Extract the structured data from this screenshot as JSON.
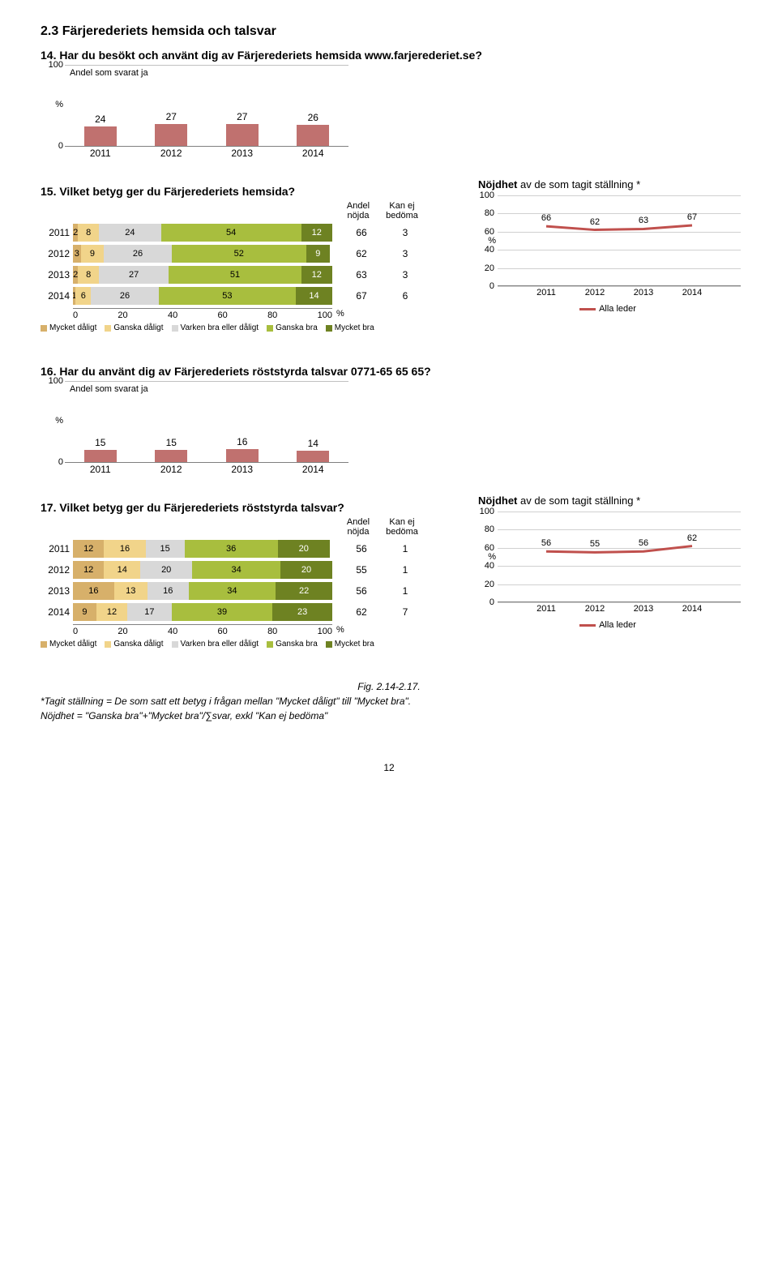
{
  "colors": {
    "bar_red": "#c0716f",
    "seg_mycket_dalig": "#d7b06a",
    "seg_ganska_dalig": "#f1d48a",
    "seg_varken": "#d8d8d8",
    "seg_ganska_bra": "#a8be3e",
    "seg_mycket_bra": "#6e8222",
    "line_red": "#c0504d",
    "grid": "#d0d0d0",
    "axis": "#808080"
  },
  "section_title": "2.3 Färjerederiets hemsida och talsvar",
  "q14": {
    "title": "14. Har du besökt och använt dig av Färjerederiets hemsida www.farjerederiet.se?",
    "legend": "Andel som svarat ja",
    "y": {
      "max": 100,
      "ticks": [
        0,
        100
      ]
    },
    "pct_label": "%",
    "bars": [
      {
        "x": "2011",
        "v": 24
      },
      {
        "x": "2012",
        "v": 27
      },
      {
        "x": "2013",
        "v": 27
      },
      {
        "x": "2014",
        "v": 26
      }
    ]
  },
  "q15": {
    "title": "15. Vilket betyg ger du Färjerederiets hemsida?",
    "header_andel": "Andel\nnöjda",
    "header_kan": "Kan ej\nbedöma",
    "rows": [
      {
        "year": "2011",
        "segs": [
          2,
          8,
          24,
          54,
          12
        ],
        "andel": 66,
        "kan": 3
      },
      {
        "year": "2012",
        "segs": [
          3,
          9,
          26,
          52,
          9
        ],
        "andel": 62,
        "kan": 3
      },
      {
        "year": "2013",
        "segs": [
          2,
          8,
          27,
          51,
          12
        ],
        "andel": 63,
        "kan": 3
      },
      {
        "year": "2014",
        "segs": [
          1,
          6,
          26,
          53,
          14
        ],
        "andel": 67,
        "kan": 6
      }
    ],
    "x_ticks": [
      0,
      20,
      40,
      60,
      80,
      100
    ],
    "pct_label": "%",
    "legend": [
      "Mycket dåligt",
      "Ganska dåligt",
      "Varken bra eller dåligt",
      "Ganska bra",
      "Mycket bra"
    ]
  },
  "nöjd15": {
    "title_prefix": "Nöjdhet",
    "title_suffix": " av de som tagit ställning *",
    "y_ticks": [
      0,
      20,
      40,
      60,
      80,
      100
    ],
    "pct_label": "%",
    "points": [
      {
        "x": "2011",
        "v": 66
      },
      {
        "x": "2012",
        "v": 62
      },
      {
        "x": "2013",
        "v": 63
      },
      {
        "x": "2014",
        "v": 67
      }
    ],
    "legend": "Alla leder"
  },
  "q16": {
    "title": "16. Har du använt dig av Färjerederiets röststyrda talsvar 0771-65 65 65?",
    "legend": "Andel som svarat ja",
    "y": {
      "max": 100,
      "ticks": [
        0,
        100
      ]
    },
    "pct_label": "%",
    "bars": [
      {
        "x": "2011",
        "v": 15
      },
      {
        "x": "2012",
        "v": 15
      },
      {
        "x": "2013",
        "v": 16
      },
      {
        "x": "2014",
        "v": 14
      }
    ]
  },
  "q17": {
    "title": "17. Vilket betyg ger du Färjerederiets röststyrda talsvar?",
    "header_andel": "Andel\nnöjda",
    "header_kan": "Kan ej\nbedöma",
    "rows": [
      {
        "year": "2011",
        "segs": [
          12,
          16,
          15,
          36,
          20
        ],
        "andel": 56,
        "kan": 1
      },
      {
        "year": "2012",
        "segs": [
          12,
          14,
          20,
          34,
          20
        ],
        "andel": 55,
        "kan": 1
      },
      {
        "year": "2013",
        "segs": [
          16,
          13,
          16,
          34,
          22
        ],
        "andel": 56,
        "kan": 1
      },
      {
        "year": "2014",
        "segs": [
          9,
          12,
          17,
          39,
          23
        ],
        "andel": 62,
        "kan": 7
      }
    ],
    "x_ticks": [
      0,
      20,
      40,
      60,
      80,
      100
    ],
    "pct_label": "%",
    "legend": [
      "Mycket dåligt",
      "Ganska dåligt",
      "Varken bra eller dåligt",
      "Ganska bra",
      "Mycket bra"
    ]
  },
  "nöjd17": {
    "title_prefix": "Nöjdhet",
    "title_suffix": " av de som tagit ställning *",
    "y_ticks": [
      0,
      20,
      40,
      60,
      80,
      100
    ],
    "pct_label": "%",
    "points": [
      {
        "x": "2011",
        "v": 56
      },
      {
        "x": "2012",
        "v": 55
      },
      {
        "x": "2013",
        "v": 56
      },
      {
        "x": "2014",
        "v": 62
      }
    ],
    "legend": "Alla leder"
  },
  "fig_label": "Fig. 2.14-2.17.",
  "footnote1": "*Tagit ställning = De som satt ett betyg i frågan mellan \"Mycket dåligt\" till \"Mycket bra\".",
  "footnote2": "Nöjdhet = \"Ganska bra\"+\"Mycket bra\"/∑svar, exkl \"Kan ej bedöma\"",
  "page": "12"
}
